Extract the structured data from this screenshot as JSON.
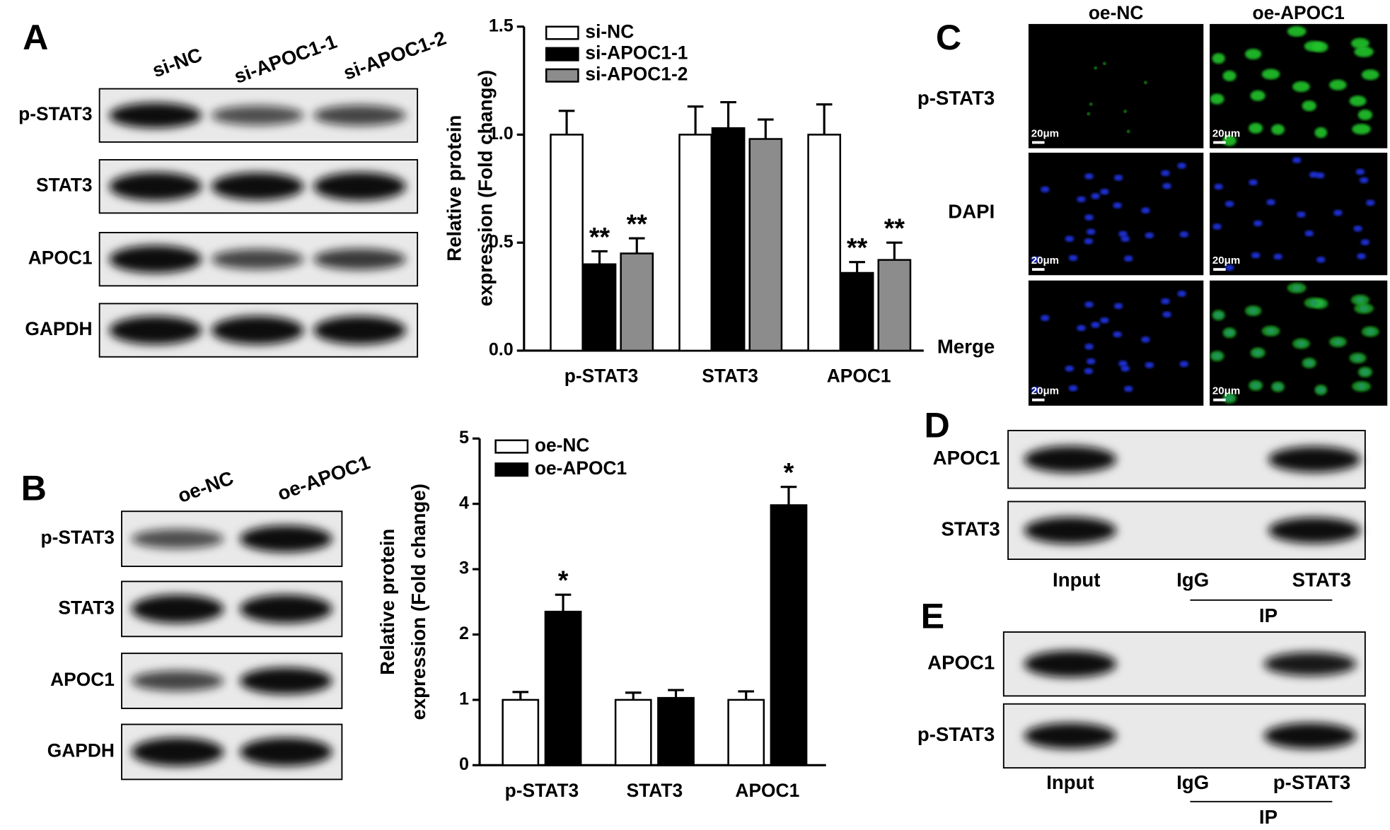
{
  "panels": {
    "A": {
      "letter": "A",
      "lanes": [
        "si-NC",
        "si-APOC1-1",
        "si-APOC1-2"
      ],
      "rows": [
        "p-STAT3",
        "STAT3",
        "APOC1",
        "GAPDH"
      ]
    },
    "B": {
      "letter": "B",
      "lanes": [
        "oe-NC",
        "oe-APOC1"
      ],
      "rows": [
        "p-STAT3",
        "STAT3",
        "APOC1",
        "GAPDH"
      ]
    },
    "C": {
      "letter": "C",
      "columns": [
        "oe-NC",
        "oe-APOC1"
      ],
      "rows": [
        "p-STAT3",
        "DAPI",
        "Merge"
      ],
      "scale_bar": "20μm"
    },
    "D": {
      "letter": "D",
      "rows": [
        "APOC1",
        "STAT3"
      ],
      "lanes": [
        "Input",
        "IgG",
        "STAT3"
      ],
      "group": "IP"
    },
    "E": {
      "letter": "E",
      "rows": [
        "APOC1",
        "p-STAT3"
      ],
      "lanes": [
        "Input",
        "IgG",
        "p-STAT3"
      ],
      "group": "IP"
    }
  },
  "chart_data": [
    {
      "type": "bar",
      "y_label": [
        "Relative protein",
        "expression (Fold change)"
      ],
      "categories": [
        "p-STAT3",
        "STAT3",
        "APOC1"
      ],
      "series": [
        {
          "name": "si-NC",
          "color": "#ffffff",
          "values": [
            1.0,
            1.0,
            1.0
          ],
          "errors": [
            0.11,
            0.13,
            0.14
          ],
          "significance": [
            null,
            null,
            null
          ]
        },
        {
          "name": "si-APOC1-1",
          "color": "#000000",
          "values": [
            0.4,
            1.03,
            0.36
          ],
          "errors": [
            0.06,
            0.12,
            0.05
          ],
          "significance": [
            "**",
            null,
            "**"
          ]
        },
        {
          "name": "si-APOC1-2",
          "color": "#8c8c8c",
          "values": [
            0.45,
            0.98,
            0.42
          ],
          "errors": [
            0.07,
            0.09,
            0.08
          ],
          "significance": [
            "**",
            null,
            "**"
          ]
        }
      ],
      "ylim": [
        0,
        1.5
      ],
      "yticks": [
        {
          "value": 0,
          "label": "0.0"
        },
        {
          "value": 0.5,
          "label": "0.5"
        },
        {
          "value": 1,
          "label": "1.0"
        },
        {
          "value": 1.5,
          "label": "1.5"
        }
      ]
    },
    {
      "type": "bar",
      "y_label": [
        "Relative protein",
        "expression (Fold change)"
      ],
      "categories": [
        "p-STAT3",
        "STAT3",
        "APOC1"
      ],
      "series": [
        {
          "name": "oe-NC",
          "color": "#ffffff",
          "values": [
            1.0,
            1.0,
            1.0
          ],
          "errors": [
            0.12,
            0.11,
            0.13
          ],
          "significance": [
            null,
            null,
            null
          ]
        },
        {
          "name": "oe-APOC1",
          "color": "#000000",
          "values": [
            2.35,
            1.03,
            3.98
          ],
          "errors": [
            0.26,
            0.12,
            0.28
          ],
          "significance": [
            "*",
            null,
            "*"
          ]
        }
      ],
      "ylim": [
        0,
        5
      ],
      "yticks": [
        0,
        1,
        2,
        3,
        4,
        5
      ]
    }
  ]
}
